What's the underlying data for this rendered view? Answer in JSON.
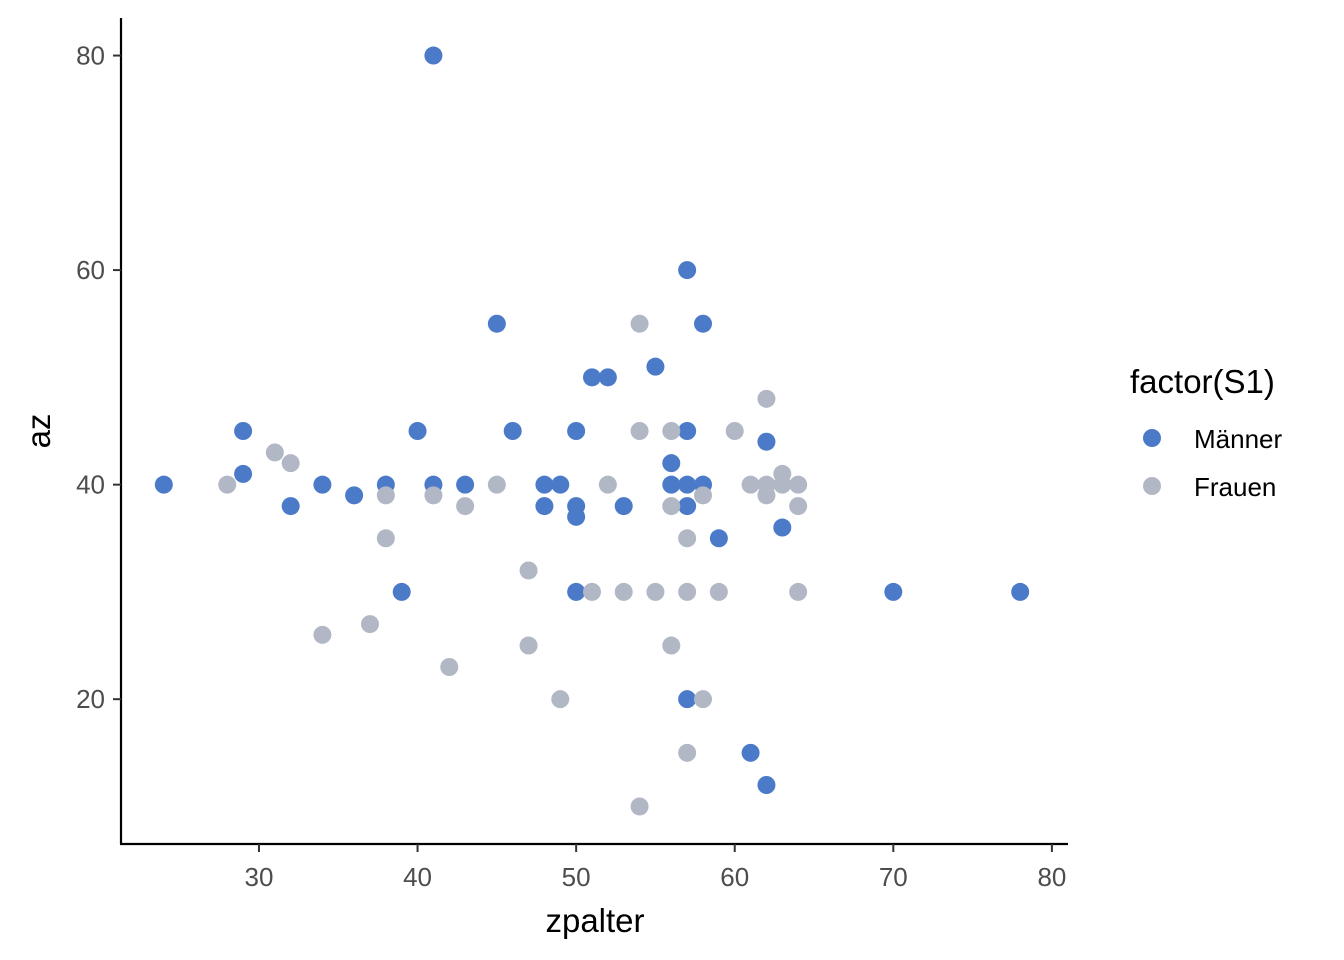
{
  "chart_data": {
    "type": "scatter",
    "title": "",
    "xlabel": "zpalter",
    "ylabel": "az",
    "xlim": [
      21.3,
      80.7
    ],
    "ylim": [
      6.5,
      83.5
    ],
    "x_ticks": [
      30,
      40,
      50,
      60,
      70,
      80
    ],
    "y_ticks": [
      20,
      40,
      60,
      80
    ],
    "grid": false,
    "legend": {
      "title": "factor(S1)",
      "placement": "right",
      "entries": [
        "Männer",
        "Frauen"
      ]
    },
    "series": [
      {
        "name": "Männer",
        "color": "#4a7ac8",
        "points": [
          [
            24,
            40
          ],
          [
            29,
            45
          ],
          [
            29,
            41
          ],
          [
            32,
            38
          ],
          [
            34,
            40
          ],
          [
            36,
            39
          ],
          [
            38,
            40
          ],
          [
            39,
            30
          ],
          [
            40,
            45
          ],
          [
            41,
            80
          ],
          [
            41,
            40
          ],
          [
            43,
            40
          ],
          [
            45,
            55
          ],
          [
            46,
            45
          ],
          [
            48,
            40
          ],
          [
            48,
            38
          ],
          [
            49,
            40
          ],
          [
            50,
            45
          ],
          [
            50,
            38
          ],
          [
            50,
            37
          ],
          [
            50,
            30
          ],
          [
            51,
            50
          ],
          [
            52,
            50
          ],
          [
            53,
            38
          ],
          [
            55,
            51
          ],
          [
            56,
            42
          ],
          [
            56,
            40
          ],
          [
            57,
            60
          ],
          [
            57,
            45
          ],
          [
            57,
            40
          ],
          [
            57,
            38
          ],
          [
            57,
            20
          ],
          [
            58,
            55
          ],
          [
            58,
            40
          ],
          [
            59,
            35
          ],
          [
            61,
            15
          ],
          [
            62,
            44
          ],
          [
            62,
            12
          ],
          [
            63,
            36
          ],
          [
            70,
            30
          ],
          [
            78,
            30
          ]
        ]
      },
      {
        "name": "Frauen",
        "color": "#b1b7c4",
        "points": [
          [
            28,
            40
          ],
          [
            31,
            43
          ],
          [
            32,
            42
          ],
          [
            34,
            26
          ],
          [
            37,
            27
          ],
          [
            38,
            39
          ],
          [
            38,
            35
          ],
          [
            41,
            39
          ],
          [
            42,
            23
          ],
          [
            43,
            38
          ],
          [
            45,
            40
          ],
          [
            47,
            32
          ],
          [
            47,
            25
          ],
          [
            49,
            20
          ],
          [
            51,
            30
          ],
          [
            52,
            40
          ],
          [
            53,
            30
          ],
          [
            54,
            55
          ],
          [
            54,
            45
          ],
          [
            54,
            10
          ],
          [
            55,
            30
          ],
          [
            56,
            45
          ],
          [
            56,
            38
          ],
          [
            56,
            25
          ],
          [
            57,
            35
          ],
          [
            57,
            30
          ],
          [
            57,
            15
          ],
          [
            58,
            39
          ],
          [
            58,
            20
          ],
          [
            59,
            30
          ],
          [
            60,
            45
          ],
          [
            61,
            40
          ],
          [
            62,
            48
          ],
          [
            62,
            40
          ],
          [
            62,
            39
          ],
          [
            63,
            41
          ],
          [
            63,
            40
          ],
          [
            64,
            40
          ],
          [
            64,
            38
          ],
          [
            64,
            30
          ]
        ]
      }
    ]
  }
}
